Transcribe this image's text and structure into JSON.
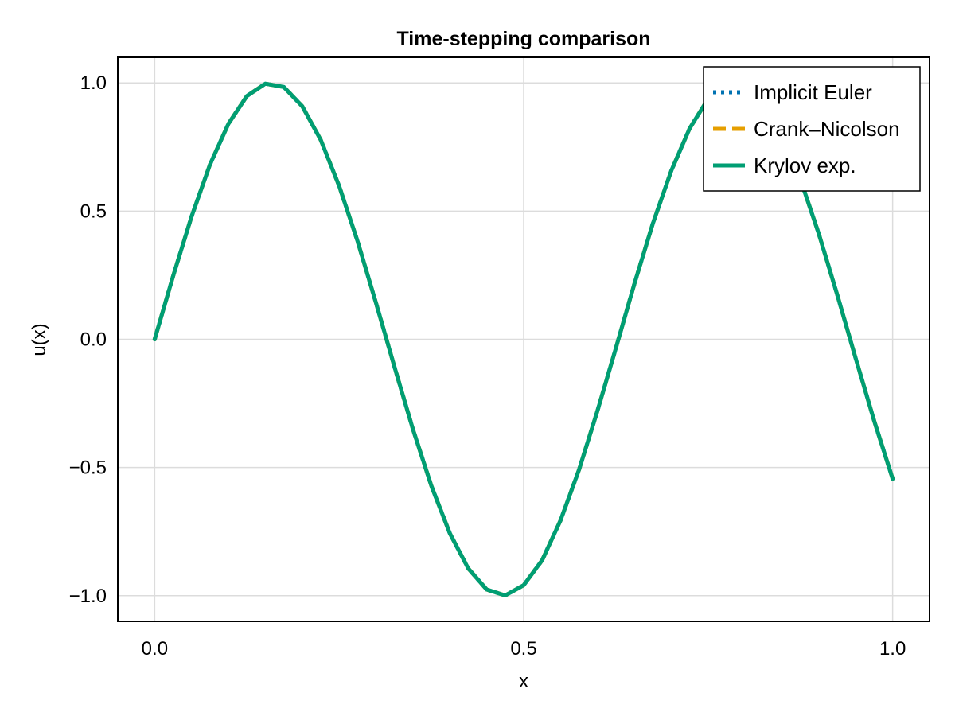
{
  "chart_data": {
    "type": "line",
    "title": "Time-stepping comparison",
    "xlabel": "x",
    "ylabel": "u(x)",
    "xlim": [
      -0.05,
      1.05
    ],
    "ylim": [
      -1.1,
      1.1
    ],
    "xticks": [
      0.0,
      0.5,
      1.0
    ],
    "xtick_labels": [
      "0.0",
      "0.5",
      "1.0"
    ],
    "yticks": [
      -1.0,
      -0.5,
      0.0,
      0.5,
      1.0
    ],
    "ytick_labels": [
      "−1.0",
      "−0.5",
      "0.0",
      "0.5",
      "1.0"
    ],
    "grid": true,
    "legend_position": "top-right",
    "x": [
      0.0,
      0.025,
      0.05,
      0.075,
      0.1,
      0.125,
      0.15,
      0.175,
      0.2,
      0.225,
      0.25,
      0.275,
      0.3,
      0.325,
      0.35,
      0.375,
      0.4,
      0.425,
      0.45,
      0.475,
      0.5,
      0.525,
      0.55,
      0.575,
      0.6,
      0.625,
      0.65,
      0.675,
      0.7,
      0.725,
      0.75,
      0.775,
      0.8,
      0.825,
      0.85,
      0.875,
      0.9,
      0.925,
      0.95,
      0.975,
      1.0
    ],
    "series": [
      {
        "name": "Implicit Euler",
        "color": "#0072B2",
        "style": "dotted",
        "values": [
          0.0,
          0.247,
          0.479,
          0.682,
          0.841,
          0.949,
          0.997,
          0.984,
          0.909,
          0.778,
          0.598,
          0.382,
          0.141,
          -0.108,
          -0.351,
          -0.572,
          -0.757,
          -0.894,
          -0.976,
          -0.999,
          -0.959,
          -0.862,
          -0.706,
          -0.509,
          -0.279,
          -0.034,
          0.216,
          0.451,
          0.657,
          0.823,
          0.938,
          0.994,
          0.989,
          0.923,
          0.799,
          0.624,
          0.411,
          0.173,
          -0.075,
          -0.318,
          -0.544
        ]
      },
      {
        "name": "Crank–Nicolson",
        "color": "#E69F00",
        "style": "dashed",
        "values": [
          0.0,
          0.247,
          0.479,
          0.682,
          0.841,
          0.949,
          0.997,
          0.984,
          0.909,
          0.778,
          0.598,
          0.382,
          0.141,
          -0.108,
          -0.351,
          -0.572,
          -0.757,
          -0.894,
          -0.976,
          -0.999,
          -0.959,
          -0.862,
          -0.706,
          -0.509,
          -0.279,
          -0.034,
          0.216,
          0.451,
          0.657,
          0.823,
          0.938,
          0.994,
          0.989,
          0.923,
          0.799,
          0.624,
          0.411,
          0.173,
          -0.075,
          -0.318,
          -0.544
        ]
      },
      {
        "name": "Krylov exp.",
        "color": "#009E73",
        "style": "solid",
        "values": [
          0.0,
          0.247,
          0.479,
          0.682,
          0.841,
          0.949,
          0.997,
          0.984,
          0.909,
          0.778,
          0.598,
          0.382,
          0.141,
          -0.108,
          -0.351,
          -0.572,
          -0.757,
          -0.894,
          -0.976,
          -0.999,
          -0.959,
          -0.862,
          -0.706,
          -0.509,
          -0.279,
          -0.034,
          0.216,
          0.451,
          0.657,
          0.823,
          0.938,
          0.994,
          0.989,
          0.923,
          0.799,
          0.624,
          0.411,
          0.173,
          -0.075,
          -0.318,
          -0.544
        ]
      }
    ]
  }
}
